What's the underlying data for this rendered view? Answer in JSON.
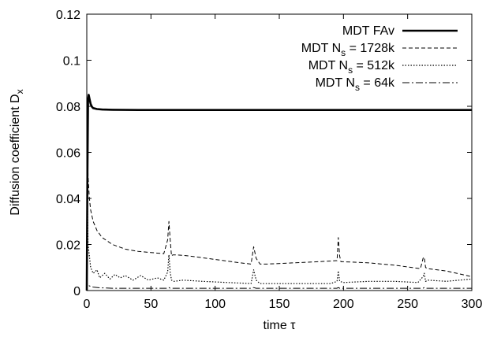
{
  "chart_data": {
    "type": "line",
    "title": "",
    "xlabel": "time τ",
    "ylabel": "Diffusion coefficient D_x",
    "ylabel_main": "Diffusion coefficient D",
    "ylabel_sub": "x",
    "xlim": [
      0,
      300
    ],
    "ylim": [
      0,
      0.12
    ],
    "xticks": [
      0,
      50,
      100,
      150,
      200,
      250,
      300
    ],
    "xtick_labels": [
      "0",
      "50",
      "100",
      "150",
      "200",
      "250",
      "300"
    ],
    "yticks": [
      0,
      0.02,
      0.04,
      0.06,
      0.08,
      0.1,
      0.12
    ],
    "ytick_labels": [
      "0",
      "0.02",
      "0.04",
      "0.06",
      "0.08",
      "0.1",
      "0.12"
    ],
    "grid": false,
    "legend_position": "top-right",
    "series": [
      {
        "name": "MDT FAv",
        "legend_parts": [
          "MDT FAv"
        ],
        "style": "solid-thick",
        "x": [
          0,
          0.5,
          1,
          1.5,
          2,
          3,
          4,
          5,
          8,
          12,
          20,
          40,
          100,
          200,
          300
        ],
        "y": [
          0,
          0.05,
          0.083,
          0.085,
          0.0835,
          0.081,
          0.0798,
          0.0792,
          0.0788,
          0.0786,
          0.0785,
          0.0784,
          0.0784,
          0.0784,
          0.0784
        ]
      },
      {
        "name": "MDT N_s = 1728k",
        "legend_parts": [
          "MDT N",
          "s",
          " = 1728k"
        ],
        "style": "dashed",
        "x": [
          0,
          0.6,
          1,
          1.5,
          2,
          3,
          5,
          8,
          12,
          20,
          30,
          40,
          50,
          60,
          63,
          64,
          65,
          66,
          67,
          70,
          80,
          100,
          120,
          128,
          130,
          132,
          135,
          140,
          160,
          180,
          195,
          196,
          197,
          198,
          200,
          220,
          240,
          260,
          262,
          263,
          264,
          266,
          280,
          300
        ],
        "y": [
          0,
          0.06,
          0.05,
          0.045,
          0.04,
          0.035,
          0.03,
          0.026,
          0.023,
          0.02,
          0.018,
          0.017,
          0.0165,
          0.016,
          0.022,
          0.03,
          0.022,
          0.015,
          0.0155,
          0.0155,
          0.015,
          0.0135,
          0.012,
          0.0115,
          0.019,
          0.014,
          0.0115,
          0.0115,
          0.012,
          0.0125,
          0.013,
          0.023,
          0.015,
          0.0125,
          0.0125,
          0.012,
          0.011,
          0.0095,
          0.014,
          0.0145,
          0.01,
          0.0095,
          0.0085,
          0.006
        ]
      },
      {
        "name": "MDT N_s = 512k",
        "legend_parts": [
          "MDT N",
          "s",
          " = 512k"
        ],
        "style": "dotted",
        "x": [
          0,
          0.5,
          1,
          2,
          3,
          5,
          8,
          10,
          14,
          18,
          22,
          26,
          30,
          36,
          42,
          48,
          55,
          60,
          63,
          64,
          65,
          66,
          68,
          75,
          90,
          110,
          128,
          130,
          132,
          135,
          150,
          170,
          190,
          195,
          196,
          197,
          200,
          220,
          240,
          258,
          262,
          263,
          264,
          266,
          280,
          300
        ],
        "y": [
          0,
          0.04,
          0.02,
          0.015,
          0.01,
          0.0075,
          0.009,
          0.0055,
          0.0075,
          0.005,
          0.007,
          0.0055,
          0.0065,
          0.0045,
          0.0065,
          0.0045,
          0.0055,
          0.0045,
          0.008,
          0.0155,
          0.008,
          0.0045,
          0.004,
          0.0045,
          0.004,
          0.0035,
          0.003,
          0.009,
          0.0045,
          0.003,
          0.003,
          0.003,
          0.003,
          0.004,
          0.0085,
          0.004,
          0.0035,
          0.004,
          0.004,
          0.0035,
          0.006,
          0.0075,
          0.004,
          0.0045,
          0.004,
          0.005
        ]
      },
      {
        "name": "MDT N_s = 64k",
        "legend_parts": [
          "MDT N",
          "s",
          " = 64k"
        ],
        "style": "dashdot",
        "x": [
          0,
          0.4,
          1,
          2,
          5,
          10,
          20,
          40,
          60,
          63,
          64,
          65,
          68,
          100,
          128,
          130,
          132,
          160,
          195,
          196,
          197,
          230,
          262,
          263,
          264,
          300
        ],
        "y": [
          0,
          0.003,
          0.0025,
          0.002,
          0.0015,
          0.0012,
          0.001,
          0.001,
          0.001,
          0.001,
          0.0013,
          0.001,
          0.001,
          0.001,
          0.001,
          0.0013,
          0.001,
          0.001,
          0.001,
          0.0013,
          0.001,
          0.001,
          0.001,
          0.0013,
          0.001,
          0.001
        ]
      }
    ]
  }
}
